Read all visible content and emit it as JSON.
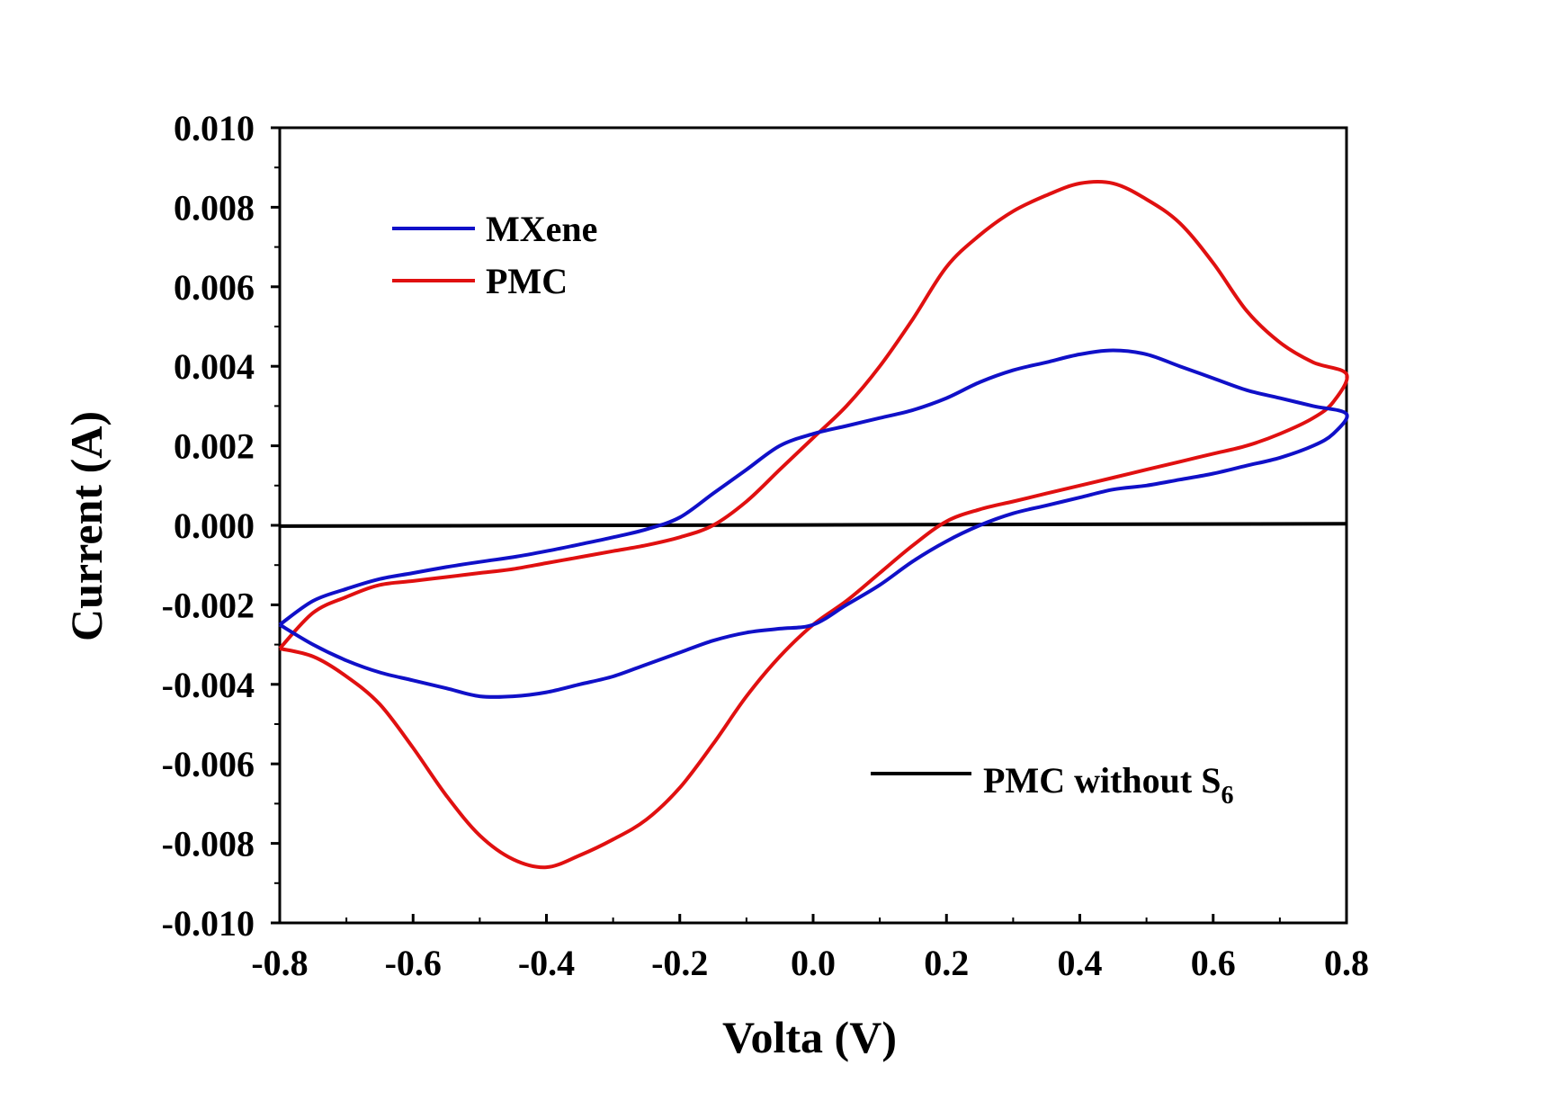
{
  "chart_data": {
    "type": "line",
    "title": "",
    "xlabel": "Volta (V)",
    "ylabel": "Current (A)",
    "xlim": [
      -0.8,
      0.8
    ],
    "ylim": [
      -0.01,
      0.01
    ],
    "x_ticks": [
      "-0.8",
      "-0.6",
      "-0.4",
      "-0.2",
      "0.0",
      "0.2",
      "0.4",
      "0.6",
      "0.8"
    ],
    "y_ticks": [
      "0.010",
      "0.008",
      "0.006",
      "0.004",
      "0.002",
      "0.000",
      "-0.002",
      "-0.004",
      "-0.006",
      "-0.008",
      "-0.010"
    ],
    "grid": false,
    "series": [
      {
        "name": "MXene",
        "color": "#1010c8",
        "legend_label": "MXene",
        "points": [
          [
            -0.8,
            -0.0025
          ],
          [
            -0.75,
            -0.0019
          ],
          [
            -0.7,
            -0.0016
          ],
          [
            -0.65,
            -0.00135
          ],
          [
            -0.6,
            -0.0012
          ],
          [
            -0.55,
            -0.00105
          ],
          [
            -0.5,
            -0.00092
          ],
          [
            -0.45,
            -0.0008
          ],
          [
            -0.4,
            -0.00065
          ],
          [
            -0.35,
            -0.00048
          ],
          [
            -0.3,
            -0.0003
          ],
          [
            -0.25,
            -0.0001
          ],
          [
            -0.2,
            0.0002
          ],
          [
            -0.15,
            0.0008
          ],
          [
            -0.1,
            0.0014
          ],
          [
            -0.05,
            0.002
          ],
          [
            0.0,
            0.0023
          ],
          [
            0.05,
            0.0025
          ],
          [
            0.1,
            0.0027
          ],
          [
            0.15,
            0.0029
          ],
          [
            0.2,
            0.0032
          ],
          [
            0.25,
            0.0036
          ],
          [
            0.3,
            0.0039
          ],
          [
            0.35,
            0.0041
          ],
          [
            0.4,
            0.0043
          ],
          [
            0.45,
            0.0044
          ],
          [
            0.5,
            0.0043
          ],
          [
            0.55,
            0.004
          ],
          [
            0.6,
            0.0037
          ],
          [
            0.65,
            0.0034
          ],
          [
            0.7,
            0.0032
          ],
          [
            0.75,
            0.003
          ],
          [
            0.8,
            0.0028
          ],
          [
            0.78,
            0.0023
          ],
          [
            0.75,
            0.002
          ],
          [
            0.7,
            0.0017
          ],
          [
            0.65,
            0.0015
          ],
          [
            0.6,
            0.0013
          ],
          [
            0.55,
            0.00115
          ],
          [
            0.5,
            0.001
          ],
          [
            0.45,
            0.0009
          ],
          [
            0.4,
            0.0007
          ],
          [
            0.35,
            0.0005
          ],
          [
            0.3,
            0.0003
          ],
          [
            0.25,
            0.0
          ],
          [
            0.2,
            -0.0004
          ],
          [
            0.15,
            -0.0009
          ],
          [
            0.1,
            -0.0015
          ],
          [
            0.05,
            -0.002
          ],
          [
            0.0,
            -0.0025
          ],
          [
            -0.05,
            -0.0026
          ],
          [
            -0.1,
            -0.0027
          ],
          [
            -0.15,
            -0.0029
          ],
          [
            -0.2,
            -0.0032
          ],
          [
            -0.25,
            -0.0035
          ],
          [
            -0.3,
            -0.0038
          ],
          [
            -0.35,
            -0.004
          ],
          [
            -0.4,
            -0.0042
          ],
          [
            -0.45,
            -0.0043
          ],
          [
            -0.5,
            -0.0043
          ],
          [
            -0.55,
            -0.0041
          ],
          [
            -0.6,
            -0.0039
          ],
          [
            -0.65,
            -0.0037
          ],
          [
            -0.7,
            -0.0034
          ],
          [
            -0.75,
            -0.003
          ],
          [
            -0.8,
            -0.0025
          ]
        ]
      },
      {
        "name": "PMC",
        "color": "#e01010",
        "legend_label": "PMC",
        "points": [
          [
            -0.8,
            -0.0031
          ],
          [
            -0.75,
            -0.0022
          ],
          [
            -0.7,
            -0.0018
          ],
          [
            -0.65,
            -0.0015
          ],
          [
            -0.6,
            -0.0014
          ],
          [
            -0.55,
            -0.0013
          ],
          [
            -0.5,
            -0.0012
          ],
          [
            -0.45,
            -0.0011
          ],
          [
            -0.4,
            -0.00095
          ],
          [
            -0.35,
            -0.0008
          ],
          [
            -0.3,
            -0.00065
          ],
          [
            -0.25,
            -0.0005
          ],
          [
            -0.2,
            -0.0003
          ],
          [
            -0.15,
            0.0
          ],
          [
            -0.1,
            0.0006
          ],
          [
            -0.05,
            0.0014
          ],
          [
            0.0,
            0.0022
          ],
          [
            0.05,
            0.003
          ],
          [
            0.1,
            0.004
          ],
          [
            0.15,
            0.0052
          ],
          [
            0.2,
            0.0065
          ],
          [
            0.25,
            0.0073
          ],
          [
            0.3,
            0.0079
          ],
          [
            0.35,
            0.0083
          ],
          [
            0.4,
            0.0086
          ],
          [
            0.45,
            0.0086
          ],
          [
            0.5,
            0.0082
          ],
          [
            0.55,
            0.0076
          ],
          [
            0.6,
            0.0066
          ],
          [
            0.65,
            0.0054
          ],
          [
            0.7,
            0.0046
          ],
          [
            0.75,
            0.0041
          ],
          [
            0.8,
            0.0038
          ],
          [
            0.78,
            0.0031
          ],
          [
            0.75,
            0.0027
          ],
          [
            0.7,
            0.0023
          ],
          [
            0.65,
            0.002
          ],
          [
            0.6,
            0.0018
          ],
          [
            0.55,
            0.0016
          ],
          [
            0.5,
            0.0014
          ],
          [
            0.45,
            0.0012
          ],
          [
            0.4,
            0.001
          ],
          [
            0.35,
            0.0008
          ],
          [
            0.3,
            0.0006
          ],
          [
            0.25,
            0.0004
          ],
          [
            0.2,
            0.0001
          ],
          [
            0.15,
            -0.0005
          ],
          [
            0.1,
            -0.0012
          ],
          [
            0.05,
            -0.0019
          ],
          [
            0.0,
            -0.0025
          ],
          [
            -0.05,
            -0.0033
          ],
          [
            -0.1,
            -0.0043
          ],
          [
            -0.15,
            -0.0055
          ],
          [
            -0.2,
            -0.0066
          ],
          [
            -0.25,
            -0.0074
          ],
          [
            -0.3,
            -0.0079
          ],
          [
            -0.35,
            -0.0083
          ],
          [
            -0.4,
            -0.0086
          ],
          [
            -0.45,
            -0.0084
          ],
          [
            -0.5,
            -0.0078
          ],
          [
            -0.55,
            -0.0068
          ],
          [
            -0.6,
            -0.0056
          ],
          [
            -0.65,
            -0.0045
          ],
          [
            -0.7,
            -0.0038
          ],
          [
            -0.75,
            -0.0033
          ],
          [
            -0.8,
            -0.0031
          ]
        ]
      },
      {
        "name": "PMC without S6",
        "color": "#000000",
        "legend_label": "PMC without S",
        "legend_subscript": "6",
        "points": [
          [
            -0.8,
            -2e-05
          ],
          [
            0.8,
            4e-05
          ]
        ]
      }
    ]
  }
}
